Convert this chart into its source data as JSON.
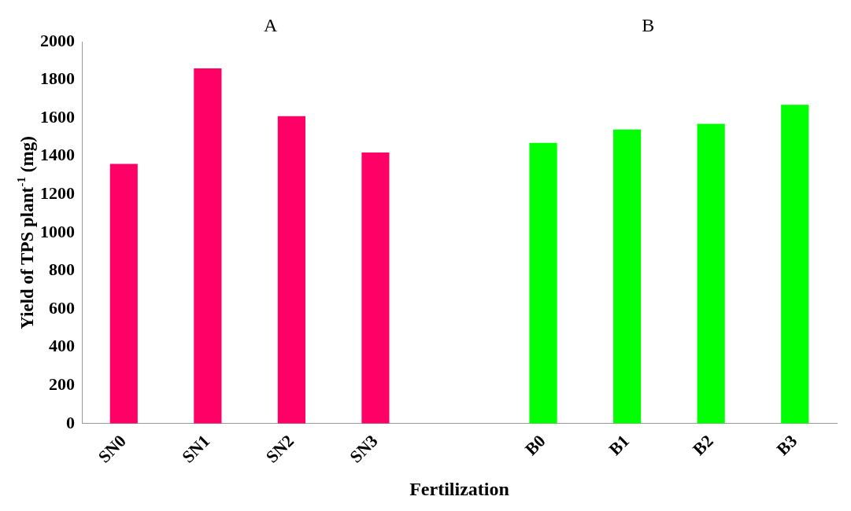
{
  "chart_data": {
    "type": "bar",
    "xlabel": "Fertilization",
    "ylabel": "Yield of TPS plant$^{-1}$ (mg)",
    "annotations": [
      "A",
      "B"
    ],
    "categories": [
      "SN0",
      "SN1",
      "SN2",
      "SN3",
      null,
      "B0",
      "B1",
      "B2",
      "B3"
    ],
    "values": [
      1360,
      1860,
      1610,
      1420,
      null,
      1470,
      1540,
      1570,
      1670
    ],
    "colors": [
      "#ff0066",
      "#ff0066",
      "#ff0066",
      "#ff0066",
      "#ff0066",
      "#00ff00",
      "#00ff00",
      "#00ff00",
      "#00ff00"
    ],
    "ylim": [
      0,
      2000
    ],
    "yticks": [
      0,
      200,
      400,
      600,
      800,
      1000,
      1200,
      1400,
      1600,
      1800,
      2000
    ],
    "grid": false,
    "legend": false
  }
}
